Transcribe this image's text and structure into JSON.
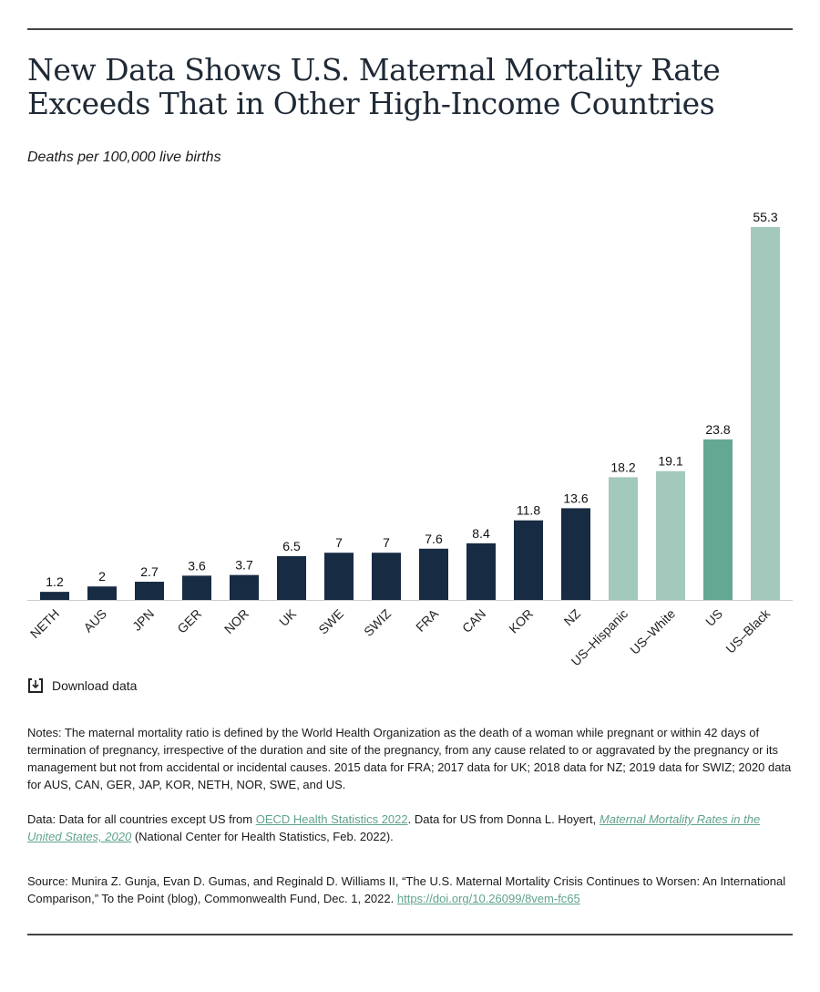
{
  "title": "New Data Shows U.S. Maternal Mortality Rate Exceeds That in Other High-Income Countries",
  "subtitle": "Deaths per 100,000 live births",
  "download_label": "Download data",
  "colors": {
    "country": "#172b43",
    "us_group": "#a3c9bc",
    "us": "#64a793"
  },
  "chart_data": {
    "type": "bar",
    "title": "New Data Shows U.S. Maternal Mortality Rate Exceeds That in Other High-Income Countries",
    "ylabel": "Deaths per 100,000 live births",
    "categories": [
      "NETH",
      "AUS",
      "JPN",
      "GER",
      "NOR",
      "UK",
      "SWE",
      "SWIZ",
      "FRA",
      "CAN",
      "KOR",
      "NZ",
      "US–Hispanic",
      "US–White",
      "US",
      "US–Black"
    ],
    "values": [
      1.2,
      2,
      2.7,
      3.6,
      3.7,
      6.5,
      7,
      7,
      7.6,
      8.4,
      11.8,
      13.6,
      18.2,
      19.1,
      23.8,
      55.3
    ],
    "bar_colors": [
      "#172b43",
      "#172b43",
      "#172b43",
      "#172b43",
      "#172b43",
      "#172b43",
      "#172b43",
      "#172b43",
      "#172b43",
      "#172b43",
      "#172b43",
      "#172b43",
      "#a3c9bc",
      "#a3c9bc",
      "#64a793",
      "#a3c9bc"
    ],
    "ylim": [
      0,
      55.3
    ],
    "grid": false,
    "data_labels": true
  },
  "notes": {
    "notes_text": "Notes: The maternal mortality ratio is defined by the World Health Organization as the death of a woman while pregnant or within 42 days of termination of pregnancy, irrespective of the duration and site of the pregnancy, from any cause related to or aggravated by the pregnancy or its management but not from accidental or incidental causes. 2015 data for FRA; 2017 data for UK; 2018 data for NZ; 2019 data for SWIZ; 2020 data for AUS, CAN, GER, JAP, KOR, NETH, NOR, SWE, and US.",
    "data_prefix": "Data: Data for all countries except US from ",
    "data_link1": "OECD Health Statistics 2022",
    "data_mid": ". Data for US from Donna L. Hoyert, ",
    "data_link2": "Maternal Mortality Rates in the United States, 2020",
    "data_suffix": " (National Center for Health Statistics, Feb. 2022).",
    "source_text": "Source: Munira Z. Gunja, Evan D. Gumas, and Reginald D. Williams II, “The U.S. Maternal Mortality Crisis Continues to Worsen: An International Comparison,” To the Point (blog), Commonwealth Fund, Dec. 1, 2022. ",
    "source_link": "https://doi.org/10.26099/8vem-fc65"
  }
}
